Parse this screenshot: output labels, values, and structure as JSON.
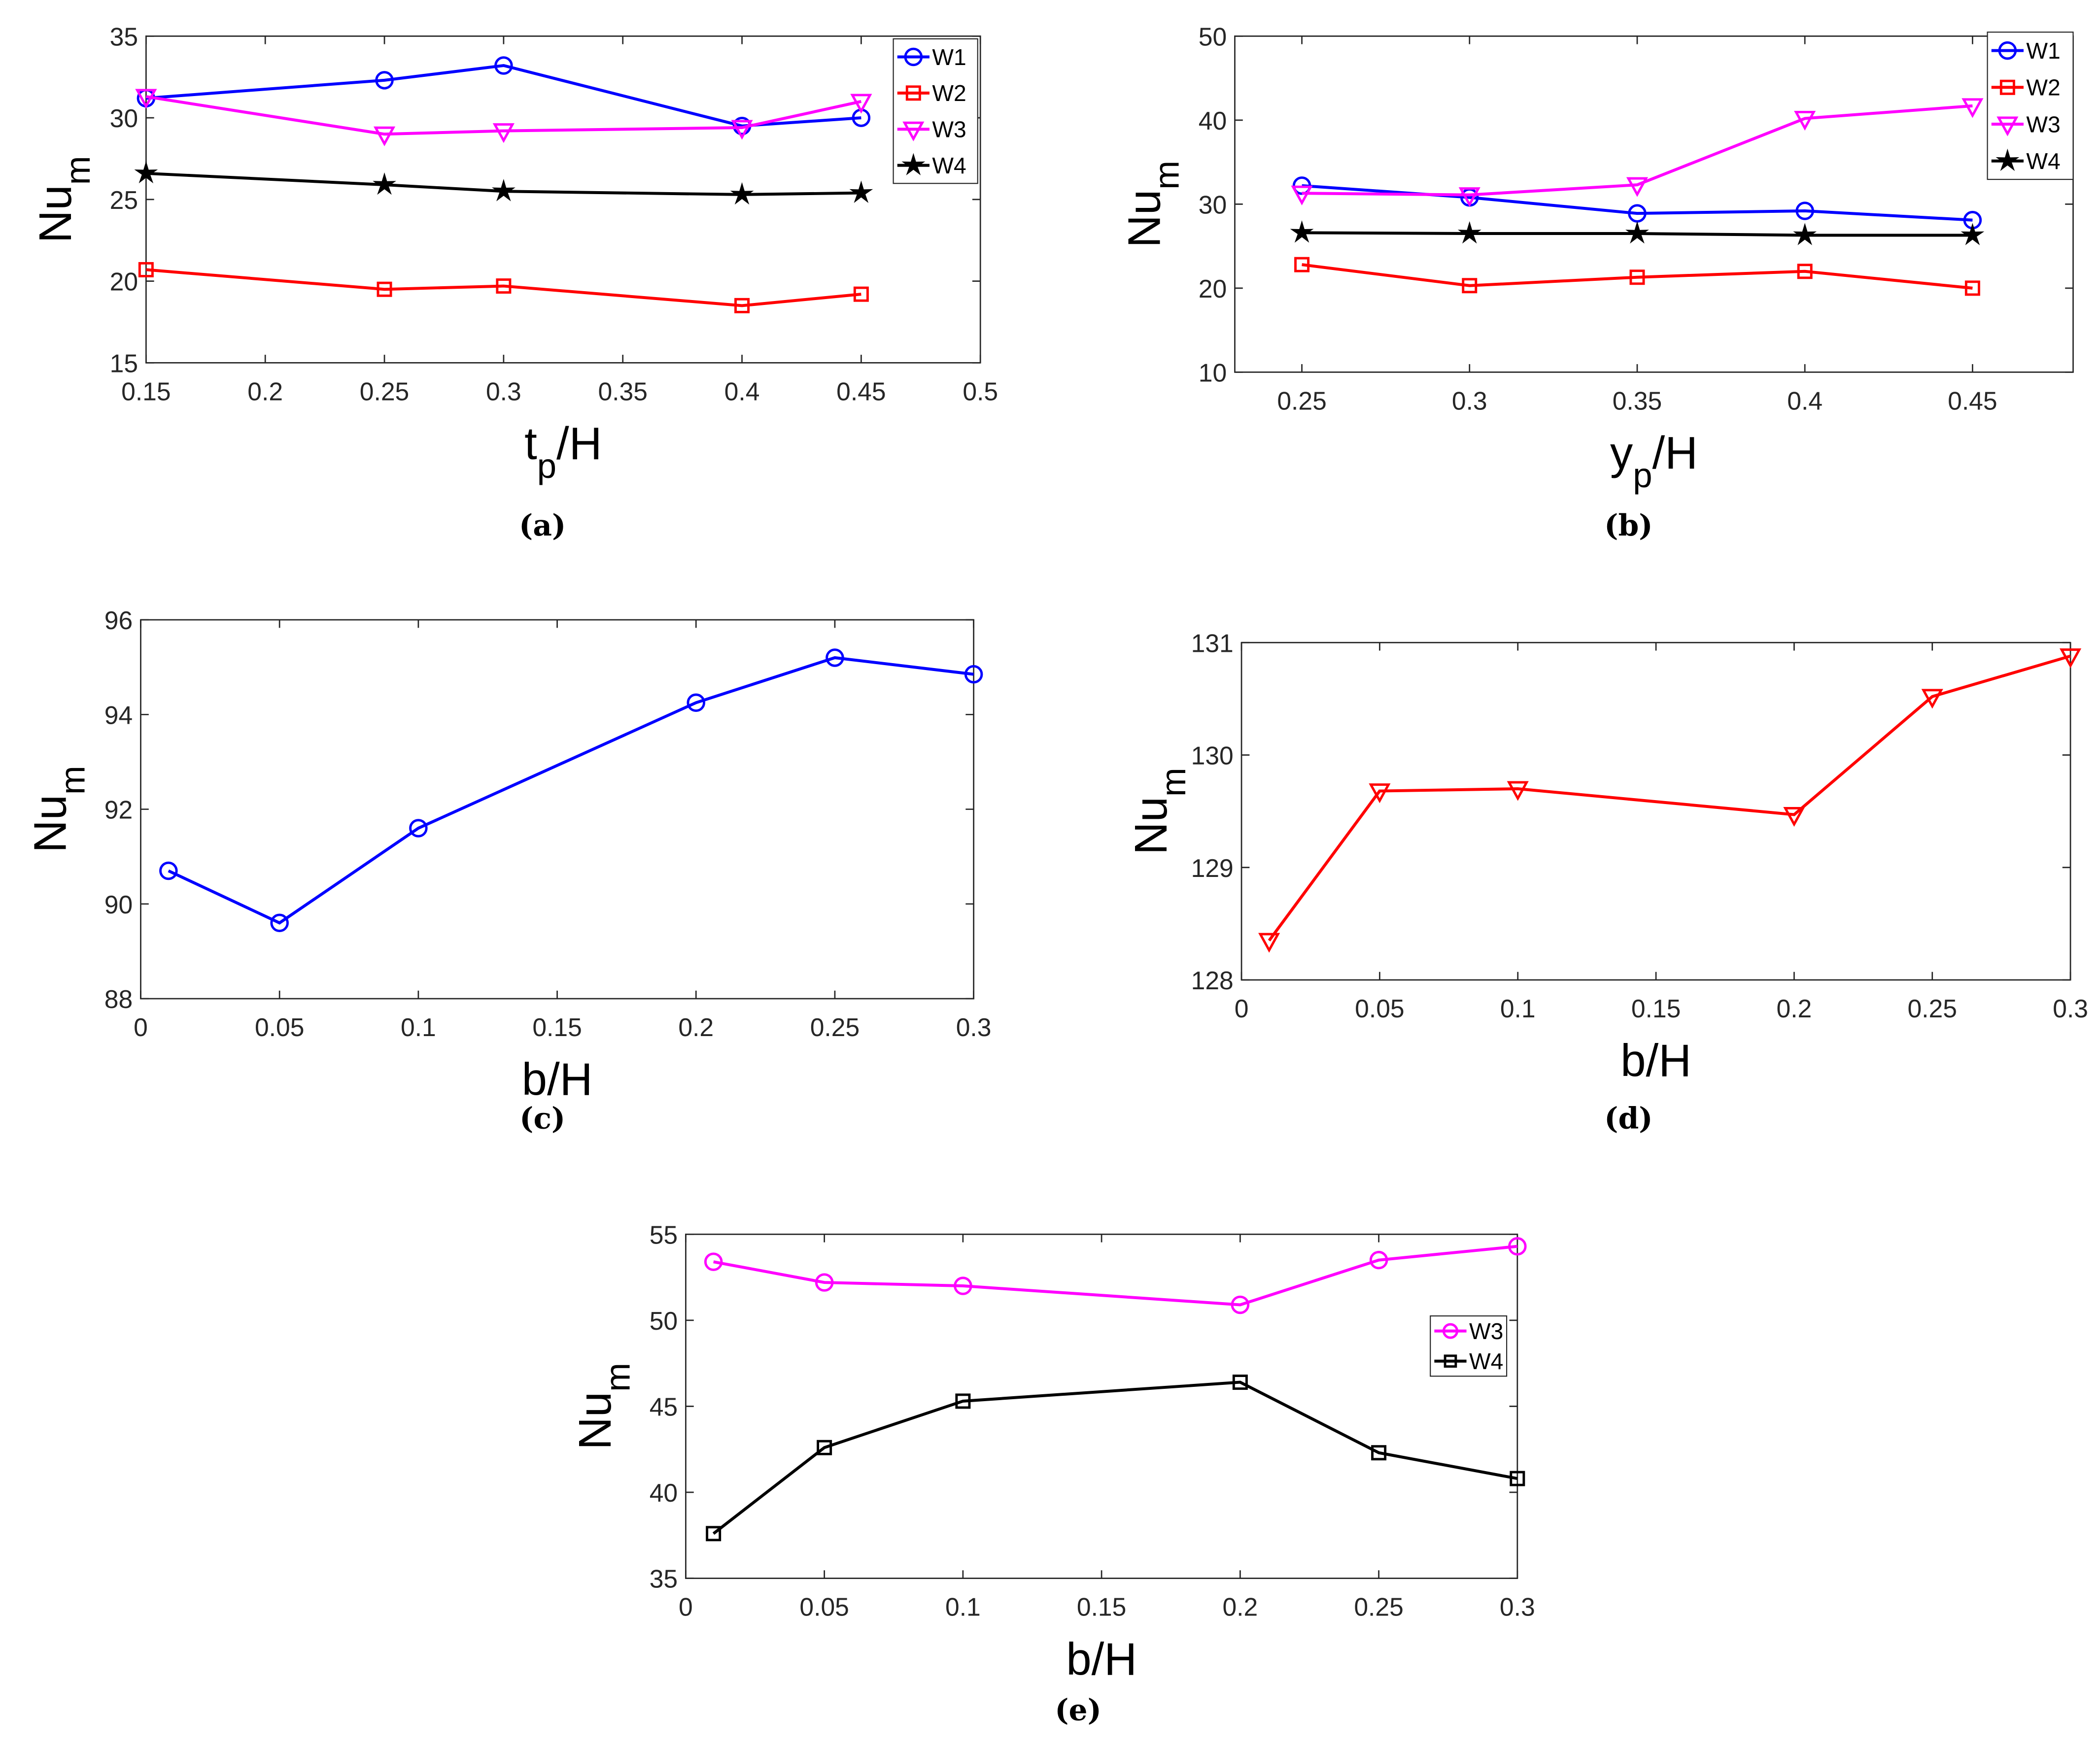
{
  "chart_data": [
    {
      "type": "line",
      "id": "a",
      "caption": "(a)",
      "xlabel": {
        "main": "t",
        "sub": "p",
        "rest": "/H"
      },
      "ylabel": {
        "main": "Nu",
        "sub": "m"
      },
      "xlim": [
        0.15,
        0.5
      ],
      "ylim": [
        15,
        35
      ],
      "xticks": [
        0.15,
        0.2,
        0.25,
        0.3,
        0.35,
        0.4,
        0.45,
        0.5
      ],
      "xtick_labels": [
        "0.15",
        "0.2",
        "0.25",
        "0.3",
        "0.35",
        "0.4",
        "0.45",
        "0.5"
      ],
      "yticks": [
        15,
        20,
        25,
        30,
        35
      ],
      "ytick_labels": [
        "15",
        "20",
        "25",
        "30",
        "35"
      ],
      "legend": "top-right",
      "x": [
        0.15,
        0.25,
        0.3,
        0.4,
        0.45
      ],
      "series": [
        {
          "name": "W1",
          "color": "#0000ff",
          "marker": "circle",
          "values": [
            31.2,
            32.3,
            33.2,
            29.5,
            30.0
          ]
        },
        {
          "name": "W2",
          "color": "#ff0000",
          "marker": "square",
          "values": [
            20.7,
            19.5,
            19.7,
            18.5,
            19.2
          ]
        },
        {
          "name": "W3",
          "color": "#ff00ff",
          "marker": "triangle-down",
          "values": [
            31.3,
            29.0,
            29.2,
            29.4,
            31.0
          ]
        },
        {
          "name": "W4",
          "color": "#000000",
          "marker": "star",
          "values": [
            26.6,
            25.9,
            25.5,
            25.3,
            25.4
          ]
        }
      ]
    },
    {
      "type": "line",
      "id": "b",
      "caption": "(b)",
      "xlabel": {
        "main": "y",
        "sub": "p",
        "rest": "/H"
      },
      "ylabel": {
        "main": "Nu",
        "sub": "m"
      },
      "xlim": [
        0.23,
        0.48
      ],
      "ylim": [
        10,
        50
      ],
      "xticks": [
        0.25,
        0.3,
        0.35,
        0.4,
        0.45
      ],
      "xtick_labels": [
        "0.25",
        "0.3",
        "0.35",
        "0.4",
        "0.45"
      ],
      "yticks": [
        10,
        20,
        30,
        40,
        50
      ],
      "ytick_labels": [
        "10",
        "20",
        "30",
        "40",
        "50"
      ],
      "legend": "top-right",
      "x": [
        0.25,
        0.3,
        0.35,
        0.4,
        0.45
      ],
      "series": [
        {
          "name": "W1",
          "color": "#0000ff",
          "marker": "circle",
          "values": [
            32.2,
            30.8,
            28.9,
            29.2,
            28.1
          ]
        },
        {
          "name": "W2",
          "color": "#ff0000",
          "marker": "square",
          "values": [
            22.8,
            20.3,
            21.3,
            22.0,
            20.0
          ]
        },
        {
          "name": "W3",
          "color": "#ff00ff",
          "marker": "triangle-down",
          "values": [
            31.3,
            31.1,
            32.3,
            40.2,
            41.7
          ]
        },
        {
          "name": "W4",
          "color": "#000000",
          "marker": "star",
          "values": [
            26.6,
            26.5,
            26.5,
            26.3,
            26.3
          ]
        }
      ]
    },
    {
      "type": "line",
      "id": "c",
      "caption": "(c)",
      "xlabel": {
        "main": "b/H",
        "sub": "",
        "rest": ""
      },
      "ylabel": {
        "main": "Nu",
        "sub": "m"
      },
      "xlim": [
        0,
        0.3
      ],
      "ylim": [
        88,
        96
      ],
      "xticks": [
        0,
        0.05,
        0.1,
        0.15,
        0.2,
        0.25,
        0.3
      ],
      "xtick_labels": [
        "0",
        "0.05",
        "0.1",
        "0.15",
        "0.2",
        "0.25",
        "0.3"
      ],
      "yticks": [
        88,
        90,
        92,
        94,
        96
      ],
      "ytick_labels": [
        "88",
        "90",
        "92",
        "94",
        "96"
      ],
      "legend": "none",
      "x": [
        0.01,
        0.05,
        0.1,
        0.2,
        0.25,
        0.3
      ],
      "series": [
        {
          "name": "",
          "color": "#0000ff",
          "marker": "circle",
          "values": [
            90.7,
            89.6,
            91.6,
            94.25,
            95.2,
            94.85
          ]
        }
      ]
    },
    {
      "type": "line",
      "id": "d",
      "caption": "(d)",
      "xlabel": {
        "main": "b/H",
        "sub": "",
        "rest": ""
      },
      "ylabel": {
        "main": "Nu",
        "sub": "m"
      },
      "xlim": [
        0,
        0.3
      ],
      "ylim": [
        128,
        131
      ],
      "xticks": [
        0,
        0.05,
        0.1,
        0.15,
        0.2,
        0.25,
        0.3
      ],
      "xtick_labels": [
        "0",
        "0.05",
        "0.1",
        "0.15",
        "0.2",
        "0.25",
        "0.3"
      ],
      "yticks": [
        128,
        129,
        130,
        131
      ],
      "ytick_labels": [
        "128",
        "129",
        "130",
        "131"
      ],
      "legend": "none",
      "x": [
        0.01,
        0.05,
        0.1,
        0.2,
        0.25,
        0.3
      ],
      "series": [
        {
          "name": "",
          "color": "#ff0000",
          "marker": "triangle-down",
          "values": [
            128.35,
            129.68,
            129.7,
            129.47,
            130.52,
            130.88
          ]
        }
      ]
    },
    {
      "type": "line",
      "id": "e",
      "caption": "(e)",
      "xlabel": {
        "main": "b/H",
        "sub": "",
        "rest": ""
      },
      "ylabel": {
        "main": "Nu",
        "sub": "m"
      },
      "xlim": [
        0,
        0.3
      ],
      "ylim": [
        35,
        55
      ],
      "xticks": [
        0,
        0.05,
        0.1,
        0.15,
        0.2,
        0.25,
        0.3
      ],
      "xtick_labels": [
        "0",
        "0.05",
        "0.1",
        "0.15",
        "0.2",
        "0.25",
        "0.3"
      ],
      "yticks": [
        35,
        40,
        45,
        50,
        55
      ],
      "ytick_labels": [
        "35",
        "40",
        "45",
        "50",
        "55"
      ],
      "legend": "right",
      "x": [
        0.01,
        0.05,
        0.1,
        0.2,
        0.25,
        0.3
      ],
      "series": [
        {
          "name": "W3",
          "color": "#ff00ff",
          "marker": "circle",
          "values": [
            53.4,
            52.2,
            52.0,
            50.9,
            53.5,
            54.3
          ]
        },
        {
          "name": "W4",
          "color": "#000000",
          "marker": "square",
          "values": [
            37.6,
            42.6,
            45.3,
            46.4,
            42.3,
            40.8
          ]
        }
      ]
    }
  ]
}
